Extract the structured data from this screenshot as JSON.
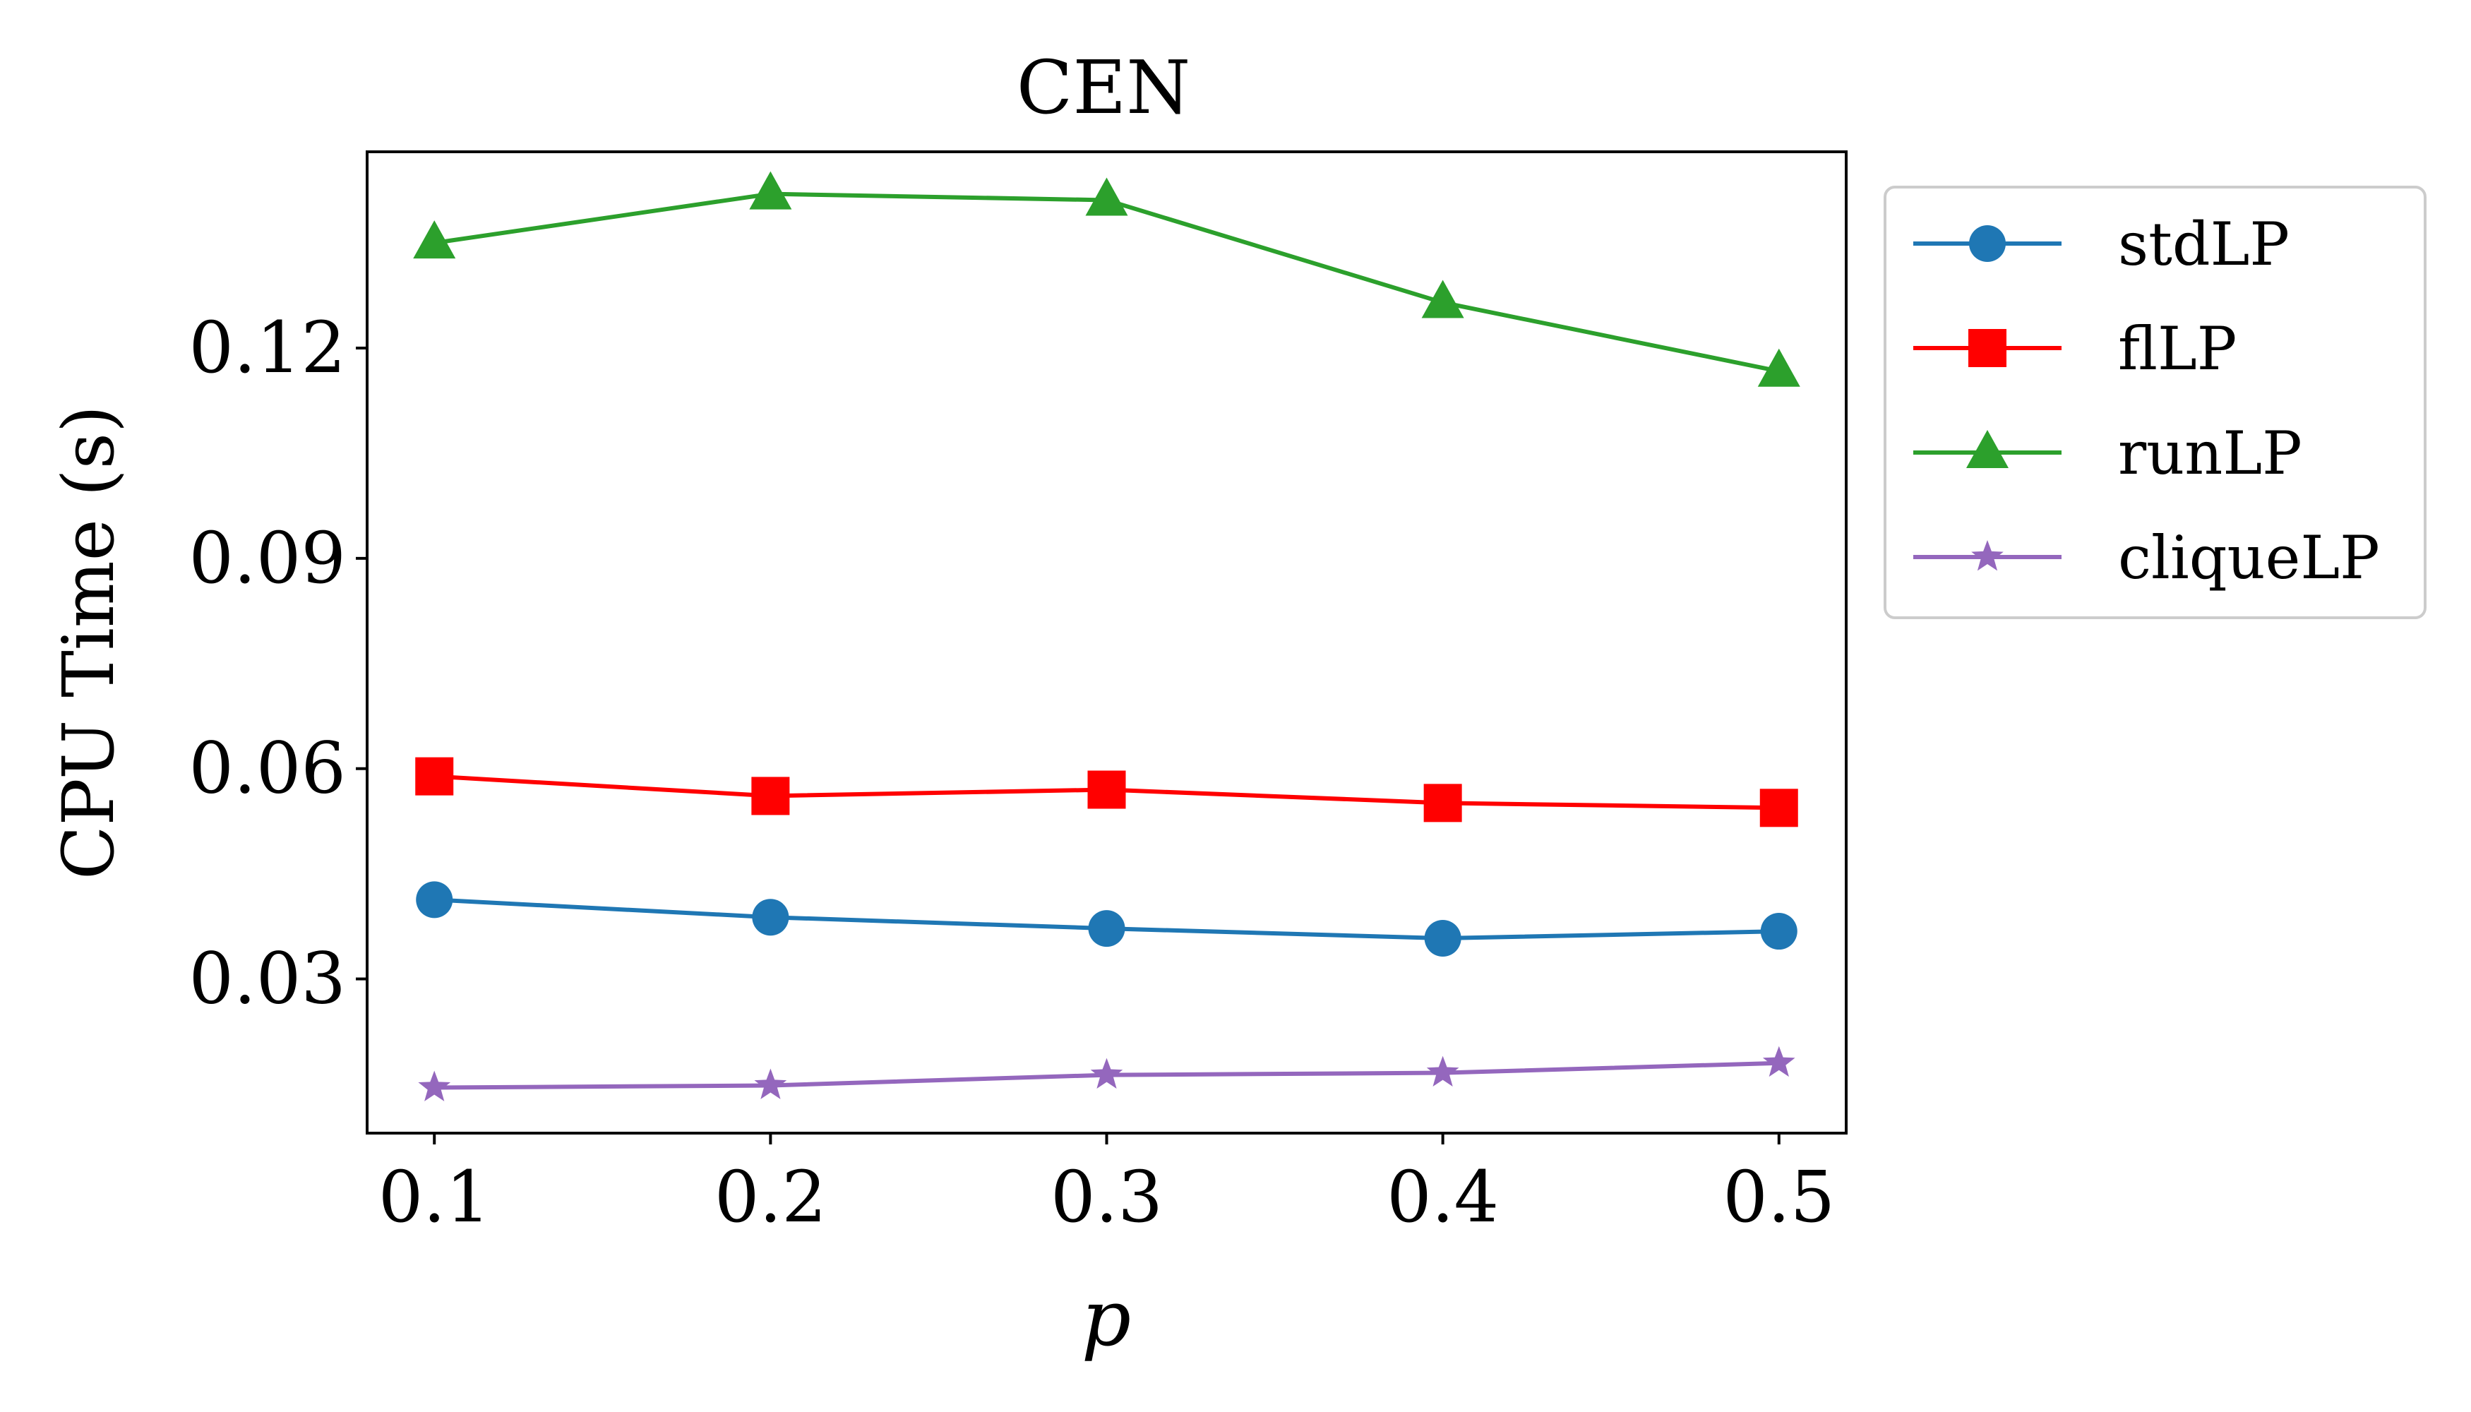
{
  "chart_data": {
    "type": "line",
    "title": "CEN",
    "xlabel": "p",
    "ylabel": "CPU Time (s)",
    "x": [
      0.1,
      0.2,
      0.3,
      0.4,
      0.5
    ],
    "x_tick_labels": [
      "0.1",
      "0.2",
      "0.3",
      "0.4",
      "0.5"
    ],
    "xlim": [
      0.08,
      0.52
    ],
    "y_ticks": [
      0.03,
      0.06,
      0.09,
      0.12
    ],
    "y_tick_labels": [
      "0.03",
      "0.06",
      "0.09",
      "0.12"
    ],
    "ylim": [
      0.008,
      0.148
    ],
    "grid": false,
    "legend_position": "outside-upper-right",
    "series": [
      {
        "name": "stdLP",
        "color": "#1f77b4",
        "marker": "circle",
        "values": [
          0.0413,
          0.0388,
          0.0372,
          0.0358,
          0.0368
        ]
      },
      {
        "name": "flLP",
        "color": "#ff0000",
        "marker": "square",
        "values": [
          0.0589,
          0.0561,
          0.057,
          0.0551,
          0.0544
        ]
      },
      {
        "name": "runLP",
        "color": "#2ca02c",
        "marker": "triangle",
        "values": [
          0.135,
          0.142,
          0.1411,
          0.1265,
          0.1167
        ]
      },
      {
        "name": "cliqueLP",
        "color": "#9467bd",
        "marker": "star",
        "values": [
          0.0145,
          0.0148,
          0.0163,
          0.0166,
          0.018
        ]
      }
    ]
  }
}
